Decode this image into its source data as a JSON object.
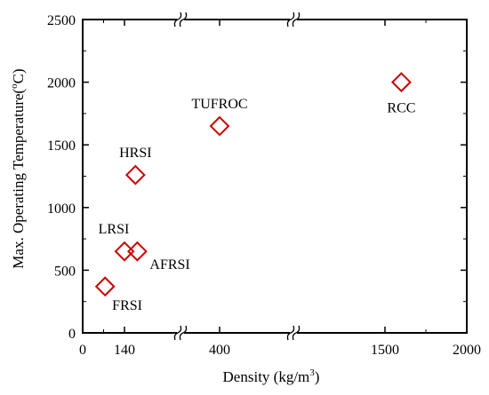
{
  "chart_data": {
    "type": "scatter",
    "xlabel": "Density (kg/m",
    "xlabel_sup": "3",
    "xlabel_end": ")",
    "ylabel": "Max. Operating Temperature(",
    "ylabel_sup": "o",
    "ylabel_end": "C)",
    "ylim": [
      0,
      2500
    ],
    "y_ticks": [
      "0",
      "500",
      "1000",
      "1500",
      "2000",
      "2500"
    ],
    "x_ticks": [
      "0",
      "140",
      "400",
      "1500",
      "2000"
    ],
    "x_axis_breaks": true,
    "grid": false,
    "marker": "open-diamond",
    "marker_color": "#cc0000",
    "points": [
      {
        "label": "FRSI",
        "x": 75,
        "y": 370
      },
      {
        "label": "LRSI",
        "x": 140,
        "y": 650
      },
      {
        "label": "AFRSI",
        "x": 175,
        "y": 650
      },
      {
        "label": "HRSI",
        "x": 170,
        "y": 1260
      },
      {
        "label": "TUFROC",
        "x": 400,
        "y": 1650
      },
      {
        "label": "RCC",
        "x": 1600,
        "y": 2000
      }
    ]
  }
}
